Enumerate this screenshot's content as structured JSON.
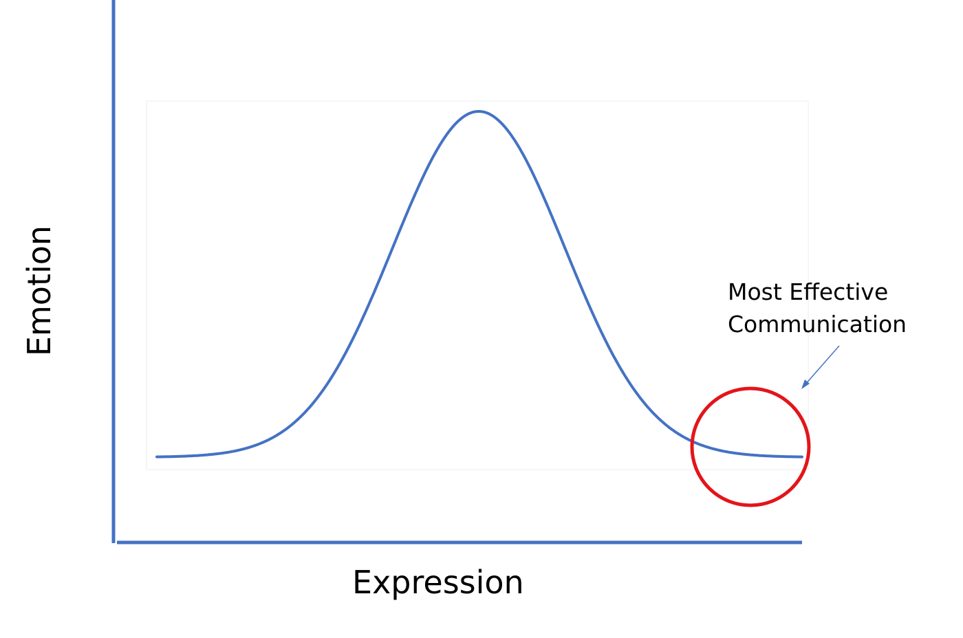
{
  "figure": {
    "x_axis_label": "Expression",
    "y_axis_label": "Emotion",
    "annotation_lines": [
      "Most Effective",
      "Communication"
    ]
  },
  "colors": {
    "axis": "#4472C4",
    "curve": "#4472C4",
    "highlight_circle": "#E3151A",
    "arrow": "#4472C4",
    "plot_frame": "#EDEDED"
  },
  "curve": {
    "shape": "bell",
    "highlighted_region": "right tail"
  }
}
